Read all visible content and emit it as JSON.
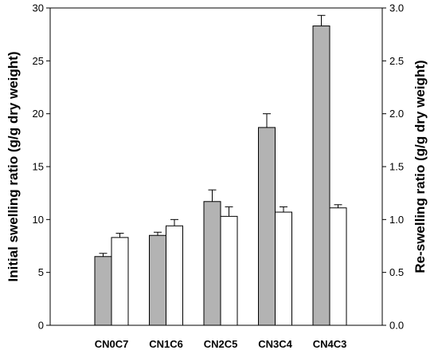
{
  "chart_data": {
    "type": "bar",
    "categories": [
      "CN0C7",
      "CN1C6",
      "CN2C5",
      "CN3C4",
      "CN4C3"
    ],
    "series": [
      {
        "name": "",
        "axis": "left",
        "color": "#b3b3b3",
        "values": [
          6.5,
          8.5,
          11.7,
          18.7,
          28.3
        ],
        "errors": [
          0.3,
          0.3,
          1.1,
          1.3,
          1.0
        ]
      },
      {
        "name": "",
        "axis": "right",
        "color": "#ffffff",
        "values": [
          0.83,
          0.94,
          1.03,
          1.07,
          1.11
        ],
        "errors": [
          0.04,
          0.06,
          0.09,
          0.05,
          0.03
        ]
      }
    ],
    "ylabel_left": "Initial swelling ratio (g/g dry weight)",
    "ylabel_right": "Re-swelling ratio (g/g dry weight)",
    "ylim_left": [
      0,
      30
    ],
    "ylim_right": [
      0,
      3.0
    ],
    "yticks_left": [
      "0",
      "5",
      "10",
      "15",
      "20",
      "25",
      "30"
    ],
    "yticks_right": [
      "0.0",
      "0.5",
      "1.0",
      "1.5",
      "2.0",
      "2.5",
      "3.0"
    ],
    "grid": false,
    "legend": "none"
  }
}
